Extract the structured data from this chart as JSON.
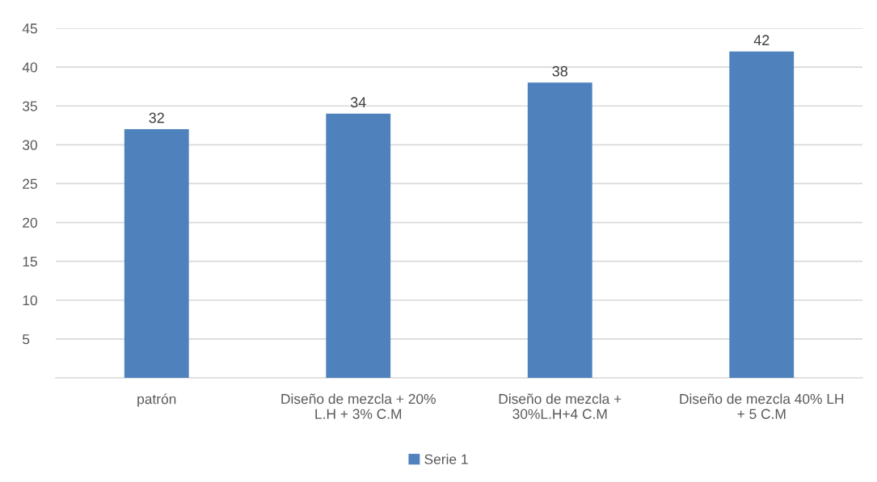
{
  "chart_data": {
    "type": "bar",
    "categories": [
      "patrón",
      "Diseño de mezcla + 20%\nL.H + 3% C.M",
      "Diseño de mezcla +\n30%L.H+4 C.M",
      "Diseño de mezcla 40% LH\n+ 5 C.M"
    ],
    "series": [
      {
        "name": "Serie 1",
        "color": "#4f81bd",
        "values": [
          32,
          34,
          38,
          42
        ]
      }
    ],
    "ylim": [
      0,
      45
    ],
    "yticks": [
      5,
      10,
      15,
      20,
      25,
      30,
      35,
      40,
      45
    ],
    "grid": "y",
    "legend": "bottom",
    "data_labels": true
  }
}
